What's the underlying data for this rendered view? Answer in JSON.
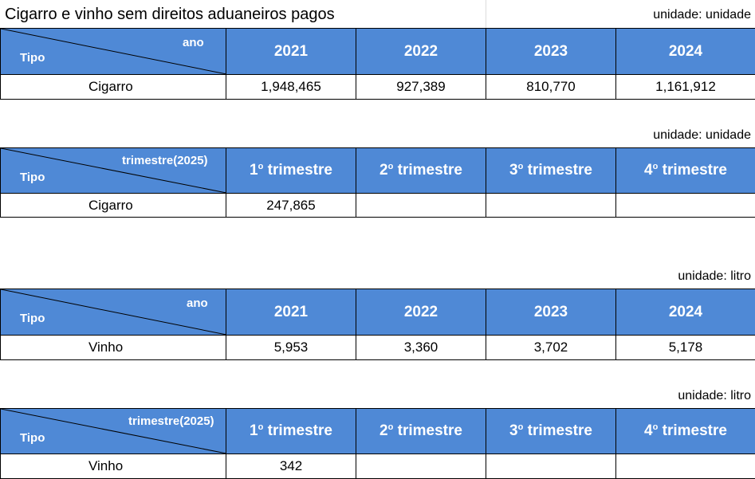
{
  "title": "Cigarro e vinho sem direitos aduaneiros pagos",
  "tables": [
    {
      "unit": "unidade: unidade",
      "corner_col": "ano",
      "corner_row": "Tipo",
      "headers": [
        {
          "main": "2021",
          "sup": ""
        },
        {
          "main": "2022",
          "sup": ""
        },
        {
          "main": "2023",
          "sup": ""
        },
        {
          "main": "2024",
          "sup": ""
        }
      ],
      "row": {
        "label": "Cigarro",
        "values": [
          "1,948,465",
          "927,389",
          "810,770",
          "1,161,912"
        ]
      }
    },
    {
      "unit": "unidade: unidade",
      "corner_col": "trimestre(2025)",
      "corner_row": "Tipo",
      "headers": [
        {
          "main": "1",
          "sup": "o",
          "rest": " trimestre"
        },
        {
          "main": "2",
          "sup": "o",
          "rest": " trimestre"
        },
        {
          "main": "3",
          "sup": "o",
          "rest": " trimestre"
        },
        {
          "main": "4",
          "sup": "o",
          "rest": " trimestre"
        }
      ],
      "row": {
        "label": "Cigarro",
        "values": [
          "247,865",
          "",
          "",
          ""
        ]
      }
    },
    {
      "unit": "unidade: litro",
      "corner_col": "ano",
      "corner_row": "Tipo",
      "headers": [
        {
          "main": "2021",
          "sup": ""
        },
        {
          "main": "2022",
          "sup": ""
        },
        {
          "main": "2023",
          "sup": ""
        },
        {
          "main": "2024",
          "sup": ""
        }
      ],
      "row": {
        "label": "Vinho",
        "values": [
          "5,953",
          "3,360",
          "3,702",
          "5,178"
        ]
      }
    },
    {
      "unit": "unidade: litro",
      "corner_col": "trimestre(2025)",
      "corner_row": "Tipo",
      "headers": [
        {
          "main": "1",
          "sup": "o",
          "rest": " trimestre"
        },
        {
          "main": "2",
          "sup": "o",
          "rest": " trimestre"
        },
        {
          "main": "3",
          "sup": "o",
          "rest": " trimestre"
        },
        {
          "main": "4",
          "sup": "o",
          "rest": " trimestre"
        }
      ],
      "row": {
        "label": "Vinho",
        "values": [
          "342",
          "",
          "",
          ""
        ]
      }
    }
  ]
}
